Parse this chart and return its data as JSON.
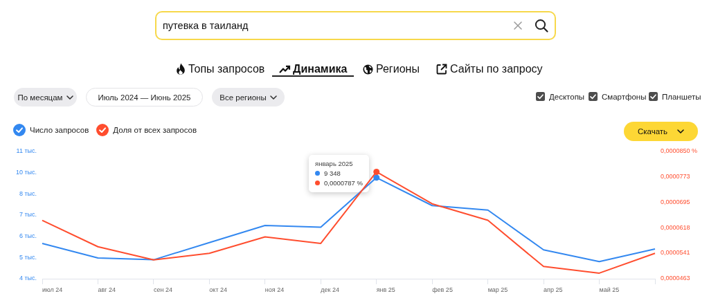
{
  "chart_data": {
    "type": "line",
    "title": "путевка в таиланд",
    "annotations": [
      "Топы запросов",
      "Динамика",
      "Регионы",
      "Сайты по запросу",
      "По месяцам",
      "Июль 2024 — Июнь 2025",
      "Все регионы",
      "Десктопы",
      "Смартфоны",
      "Планшеты",
      "Скачать",
      "январь 2025",
      "9 348",
      "0,0000787 %"
    ],
    "categories": [
      "июл 24",
      "авг 24",
      "сен 24",
      "окт 24",
      "ноя 24",
      "дек 24",
      "янв 25",
      "фев 25",
      "мар 25",
      "апр 25",
      "май 25",
      null
    ],
    "series": [
      {
        "name": "Число запросов",
        "color": "#3388f0",
        "values": [
          5.7,
          4.9,
          4.8,
          5.75,
          6.7,
          6.6,
          9.348,
          7.8,
          7.55,
          5.35,
          4.7,
          5.4
        ]
      },
      {
        "name": "Доля от всех запросов",
        "color": "#ff4d2e",
        "axis": "y2",
        "values": [
          6.4e-05,
          5.6e-05,
          5.2e-05,
          5.4e-05,
          5.9e-05,
          5.7e-05,
          7.87e-05,
          6.9e-05,
          6.4e-05,
          5e-05,
          4.8e-05,
          5.4e-05
        ]
      }
    ],
    "ylim": [
      3.75,
      10.82
    ],
    "yticks": [
      {
        "value": 3.75,
        "label": "4 тыс."
      },
      {
        "value": 4.93,
        "label": "5 тыс."
      },
      {
        "value": 6.11,
        "label": "6 тыс."
      },
      {
        "value": 7.29,
        "label": "7 тыс."
      },
      {
        "value": 8.46,
        "label": "8 тыс."
      },
      {
        "value": 9.64,
        "label": "10 тыс."
      },
      {
        "value": 10.82,
        "label": "11 тыс."
      }
    ],
    "y2lim": [
      4.63e-05,
      8.5e-05
    ],
    "y2ticks": [
      {
        "value": 4.63e-05,
        "label": "0,0000463"
      },
      {
        "value": 5.41e-05,
        "label": "0,0000541"
      },
      {
        "value": 6.18e-05,
        "label": "0,0000618"
      },
      {
        "value": 6.95e-05,
        "label": "0,0000695"
      },
      {
        "value": 7.73e-05,
        "label": "0,0000773"
      },
      {
        "value": 8.5e-05,
        "label": "0,0000850 %"
      }
    ],
    "legend": "top left",
    "grid": false,
    "marker": "none",
    "line_style": "solid"
  }
}
